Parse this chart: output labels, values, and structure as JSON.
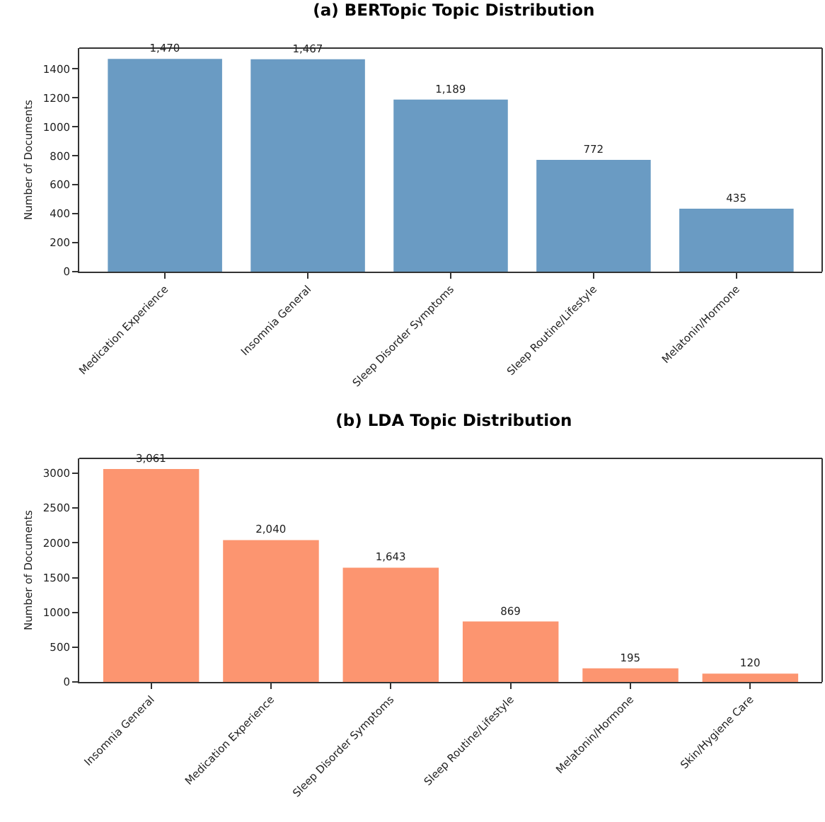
{
  "chart_data": [
    {
      "type": "bar",
      "title": "(a) BERTopic Topic Distribution",
      "ylabel": "Number of Documents",
      "categories": [
        "Medication Experience",
        "Insomnia General",
        "Sleep Disorder Symptoms",
        "Sleep Routine/Lifestyle",
        "Melatonin/Hormone"
      ],
      "values": [
        1470,
        1467,
        1189,
        772,
        435
      ],
      "value_labels": [
        "1,470",
        "1,467",
        "1,189",
        "772",
        "435"
      ],
      "color": "#6a9bc3",
      "ylim": [
        0,
        1544
      ],
      "yticks": [
        0,
        200,
        400,
        600,
        800,
        1000,
        1200,
        1400
      ],
      "grid": false,
      "legend": false
    },
    {
      "type": "bar",
      "title": "(b) LDA Topic Distribution",
      "ylabel": "Number of Documents",
      "categories": [
        "Insomnia General",
        "Medication Experience",
        "Sleep Disorder Symptoms",
        "Sleep Routine/Lifestyle",
        "Melatonin/Hormone",
        "Skin/Hygiene Care"
      ],
      "values": [
        3061,
        2040,
        1643,
        869,
        195,
        120
      ],
      "value_labels": [
        "3,061",
        "2,040",
        "1,643",
        "869",
        "195",
        "120"
      ],
      "color": "#fc9570",
      "ylim": [
        0,
        3214
      ],
      "yticks": [
        0,
        500,
        1000,
        1500,
        2000,
        2500,
        3000
      ],
      "grid": false,
      "legend": false
    }
  ]
}
